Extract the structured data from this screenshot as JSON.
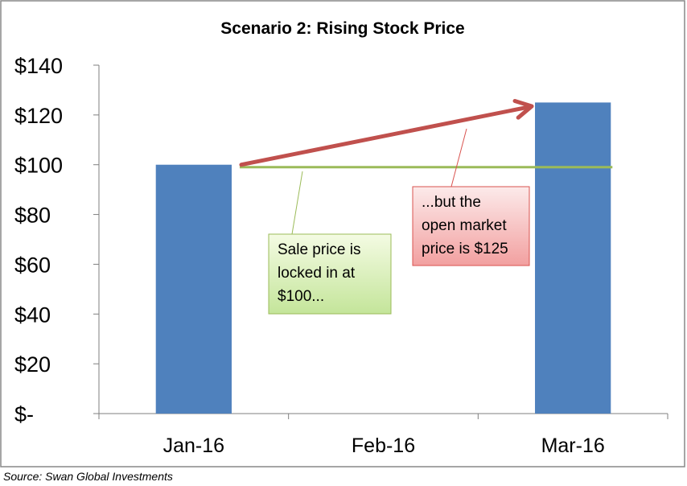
{
  "chart_data": {
    "type": "bar",
    "title": "Scenario 2: Rising Stock Price",
    "categories": [
      "Jan-16",
      "Feb-16",
      "Mar-16"
    ],
    "values": [
      100,
      null,
      125
    ],
    "ylim": [
      0,
      140
    ],
    "yticks": [
      0,
      20,
      40,
      60,
      80,
      100,
      120,
      140
    ],
    "ytick_labels": [
      "$-",
      "$20",
      "$40",
      "$60",
      "$80",
      "$100",
      "$120",
      "$140"
    ],
    "xlabel": "",
    "ylabel": "",
    "grid": false,
    "legend": "none",
    "colors": {
      "bar": "#4F81BD",
      "arrow": "#C0504D",
      "locked_line": "#9BBB59",
      "frame": "#888888",
      "axis": "#7F7F7F"
    },
    "reference_line": {
      "y": 99,
      "from_category": "Jan-16",
      "to_category": "Mar-16"
    },
    "arrow": {
      "from": {
        "category": "Jan-16",
        "y": 100
      },
      "to": {
        "category": "Mar-16",
        "y": 123.5
      }
    },
    "annotations": [
      {
        "id": "sale",
        "lines": [
          "Sale price is",
          "locked in at",
          "$100..."
        ],
        "style": "green",
        "points_to": "reference_line"
      },
      {
        "id": "market",
        "lines": [
          "...but the",
          "open market",
          "price is $125"
        ],
        "style": "red",
        "points_to": "arrow"
      }
    ]
  },
  "source": "Source: Swan Global Investments"
}
